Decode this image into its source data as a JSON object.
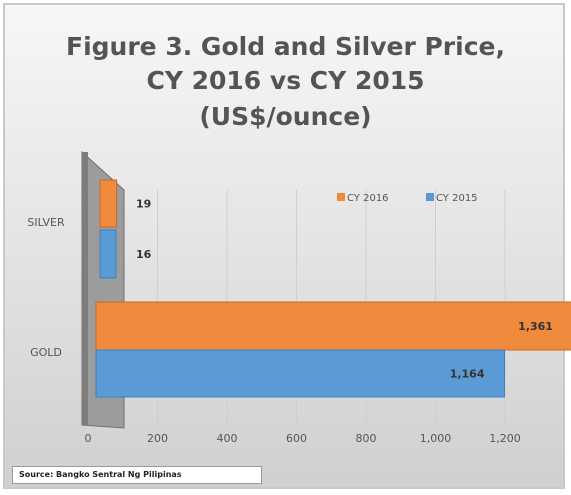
{
  "chart_data": {
    "type": "bar",
    "orientation": "horizontal",
    "title_lines": [
      "Figure 3.  Gold and Silver Price,",
      "CY 2016 vs CY 2015",
      "(US$/ounce)"
    ],
    "categories": [
      "SILVER",
      "GOLD"
    ],
    "series": [
      {
        "name": "CY 2016",
        "color": "#f08a3c",
        "values": [
          19,
          1361
        ],
        "data_labels": [
          "19",
          "1,361"
        ]
      },
      {
        "name": "CY 2015",
        "color": "#5b9bd5",
        "values": [
          16,
          1164
        ],
        "data_labels": [
          "16",
          "1,164"
        ]
      }
    ],
    "xlim": [
      0,
      1200
    ],
    "xticks": [
      0,
      200,
      400,
      600,
      800,
      1000,
      1200
    ],
    "xtick_labels": [
      "0",
      "200",
      "400",
      "600",
      "800",
      "1,000",
      "1,200"
    ],
    "grid": true,
    "legend_position": "top-right",
    "source": "Source:  Bangko Sentral Ng Pilipinas"
  }
}
